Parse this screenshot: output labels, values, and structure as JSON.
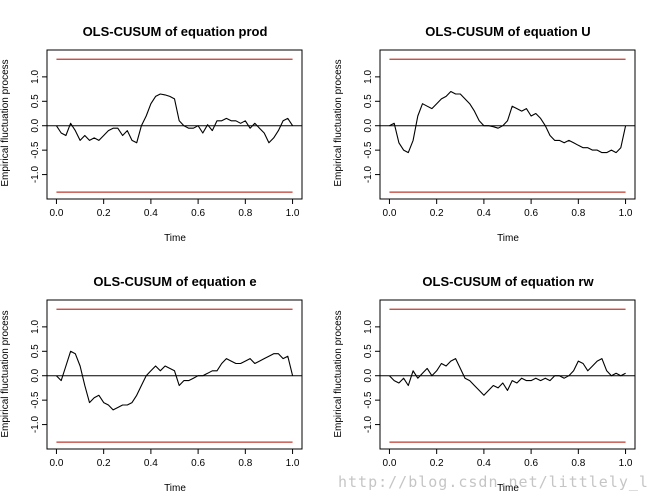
{
  "watermark": "http://blog.csdn.net/littlely_ll",
  "colors": {
    "series": "#000000",
    "boundary": "#c0392b",
    "zero_line": "#000000",
    "axis": "#000000"
  },
  "chart_data": [
    {
      "type": "line",
      "title": "OLS-CUSUM of equation prod",
      "xlabel": "Time",
      "ylabel": "Empirical fluctuation process",
      "xlim": [
        -0.04,
        1.04
      ],
      "ylim": [
        -1.5,
        1.55
      ],
      "x_ticks": [
        "0.0",
        "0.2",
        "0.4",
        "0.6",
        "0.8",
        "1.0"
      ],
      "y_ticks": [
        "-1.0",
        "-0.5",
        "0.0",
        "0.5",
        "1.0"
      ],
      "boundaries": [
        1.36,
        -1.36
      ],
      "zero_line": 0,
      "x": [
        0,
        0.02,
        0.04,
        0.06,
        0.08,
        0.1,
        0.12,
        0.14,
        0.16,
        0.18,
        0.2,
        0.22,
        0.24,
        0.26,
        0.28,
        0.3,
        0.32,
        0.34,
        0.36,
        0.38,
        0.4,
        0.42,
        0.44,
        0.46,
        0.48,
        0.5,
        0.52,
        0.54,
        0.56,
        0.58,
        0.6,
        0.62,
        0.64,
        0.66,
        0.68,
        0.7,
        0.72,
        0.74,
        0.76,
        0.78,
        0.8,
        0.82,
        0.84,
        0.86,
        0.88,
        0.9,
        0.92,
        0.94,
        0.96,
        0.98,
        1.0
      ],
      "y": [
        0,
        -0.15,
        -0.2,
        0.05,
        -0.1,
        -0.3,
        -0.2,
        -0.3,
        -0.25,
        -0.3,
        -0.2,
        -0.1,
        -0.05,
        -0.05,
        -0.2,
        -0.1,
        -0.3,
        -0.35,
        0.0,
        0.2,
        0.45,
        0.6,
        0.65,
        0.63,
        0.6,
        0.55,
        0.1,
        0.0,
        -0.05,
        -0.05,
        0.0,
        -0.15,
        0.02,
        -0.1,
        0.1,
        0.1,
        0.15,
        0.1,
        0.1,
        0.05,
        0.1,
        -0.05,
        0.05,
        -0.05,
        -0.15,
        -0.35,
        -0.25,
        -0.1,
        0.1,
        0.15,
        0.0
      ]
    },
    {
      "type": "line",
      "title": "OLS-CUSUM of equation U",
      "xlabel": "Time",
      "ylabel": "Empirical fluctuation process",
      "xlim": [
        -0.04,
        1.04
      ],
      "ylim": [
        -1.5,
        1.55
      ],
      "x_ticks": [
        "0.0",
        "0.2",
        "0.4",
        "0.6",
        "0.8",
        "1.0"
      ],
      "y_ticks": [
        "-1.0",
        "-0.5",
        "0.0",
        "0.5",
        "1.0"
      ],
      "boundaries": [
        1.36,
        -1.36
      ],
      "zero_line": 0,
      "x": [
        0,
        0.02,
        0.04,
        0.06,
        0.08,
        0.1,
        0.12,
        0.14,
        0.16,
        0.18,
        0.2,
        0.22,
        0.24,
        0.26,
        0.28,
        0.3,
        0.32,
        0.34,
        0.36,
        0.38,
        0.4,
        0.42,
        0.44,
        0.46,
        0.48,
        0.5,
        0.52,
        0.54,
        0.56,
        0.58,
        0.6,
        0.62,
        0.64,
        0.66,
        0.68,
        0.7,
        0.72,
        0.74,
        0.76,
        0.78,
        0.8,
        0.82,
        0.84,
        0.86,
        0.88,
        0.9,
        0.92,
        0.94,
        0.96,
        0.98,
        1.0
      ],
      "y": [
        0,
        0.05,
        -0.35,
        -0.5,
        -0.55,
        -0.3,
        0.2,
        0.45,
        0.4,
        0.35,
        0.45,
        0.55,
        0.6,
        0.7,
        0.65,
        0.65,
        0.55,
        0.45,
        0.3,
        0.1,
        0.0,
        0.0,
        -0.02,
        -0.05,
        0.0,
        0.1,
        0.4,
        0.35,
        0.3,
        0.35,
        0.2,
        0.25,
        0.15,
        0.0,
        -0.2,
        -0.3,
        -0.3,
        -0.35,
        -0.3,
        -0.35,
        -0.4,
        -0.45,
        -0.45,
        -0.5,
        -0.5,
        -0.55,
        -0.55,
        -0.5,
        -0.55,
        -0.45,
        0.0
      ]
    },
    {
      "type": "line",
      "title": "OLS-CUSUM of equation e",
      "xlabel": "Time",
      "ylabel": "Empirical fluctuation process",
      "xlim": [
        -0.04,
        1.04
      ],
      "ylim": [
        -1.5,
        1.55
      ],
      "x_ticks": [
        "0.0",
        "0.2",
        "0.4",
        "0.6",
        "0.8",
        "1.0"
      ],
      "y_ticks": [
        "-1.0",
        "-0.5",
        "0.0",
        "0.5",
        "1.0"
      ],
      "boundaries": [
        1.36,
        -1.36
      ],
      "zero_line": 0,
      "x": [
        0,
        0.02,
        0.04,
        0.06,
        0.08,
        0.1,
        0.12,
        0.14,
        0.16,
        0.18,
        0.2,
        0.22,
        0.24,
        0.26,
        0.28,
        0.3,
        0.32,
        0.34,
        0.36,
        0.38,
        0.4,
        0.42,
        0.44,
        0.46,
        0.48,
        0.5,
        0.52,
        0.54,
        0.56,
        0.58,
        0.6,
        0.62,
        0.64,
        0.66,
        0.68,
        0.7,
        0.72,
        0.74,
        0.76,
        0.78,
        0.8,
        0.82,
        0.84,
        0.86,
        0.88,
        0.9,
        0.92,
        0.94,
        0.96,
        0.98,
        1.0
      ],
      "y": [
        0,
        -0.1,
        0.2,
        0.5,
        0.45,
        0.2,
        -0.2,
        -0.55,
        -0.45,
        -0.4,
        -0.55,
        -0.6,
        -0.7,
        -0.65,
        -0.6,
        -0.6,
        -0.55,
        -0.4,
        -0.2,
        0.0,
        0.1,
        0.2,
        0.1,
        0.2,
        0.15,
        0.1,
        -0.2,
        -0.1,
        -0.1,
        -0.05,
        0.0,
        0.0,
        0.05,
        0.1,
        0.1,
        0.25,
        0.35,
        0.3,
        0.25,
        0.25,
        0.3,
        0.35,
        0.25,
        0.3,
        0.35,
        0.4,
        0.45,
        0.45,
        0.35,
        0.4,
        0.0
      ]
    },
    {
      "type": "line",
      "title": "OLS-CUSUM of equation rw",
      "xlabel": "Time",
      "ylabel": "Empirical fluctuation process",
      "xlim": [
        -0.04,
        1.04
      ],
      "ylim": [
        -1.5,
        1.55
      ],
      "x_ticks": [
        "0.0",
        "0.2",
        "0.4",
        "0.6",
        "0.8",
        "1.0"
      ],
      "y_ticks": [
        "-1.0",
        "-0.5",
        "0.0",
        "0.5",
        "1.0"
      ],
      "boundaries": [
        1.36,
        -1.36
      ],
      "zero_line": 0,
      "x": [
        0,
        0.02,
        0.04,
        0.06,
        0.08,
        0.1,
        0.12,
        0.14,
        0.16,
        0.18,
        0.2,
        0.22,
        0.24,
        0.26,
        0.28,
        0.3,
        0.32,
        0.34,
        0.36,
        0.38,
        0.4,
        0.42,
        0.44,
        0.46,
        0.48,
        0.5,
        0.52,
        0.54,
        0.56,
        0.58,
        0.6,
        0.62,
        0.64,
        0.66,
        0.68,
        0.7,
        0.72,
        0.74,
        0.76,
        0.78,
        0.8,
        0.82,
        0.84,
        0.86,
        0.88,
        0.9,
        0.92,
        0.94,
        0.96,
        0.98,
        1.0
      ],
      "y": [
        0,
        -0.1,
        -0.15,
        -0.05,
        -0.2,
        0.1,
        -0.05,
        0.05,
        0.15,
        0.0,
        0.1,
        0.25,
        0.2,
        0.3,
        0.35,
        0.15,
        -0.05,
        -0.1,
        -0.2,
        -0.3,
        -0.4,
        -0.3,
        -0.2,
        -0.25,
        -0.15,
        -0.3,
        -0.1,
        -0.15,
        -0.05,
        -0.1,
        -0.1,
        -0.05,
        -0.1,
        -0.05,
        -0.1,
        0.0,
        0.0,
        -0.05,
        0.0,
        0.1,
        0.3,
        0.25,
        0.1,
        0.2,
        0.3,
        0.35,
        0.1,
        0.0,
        0.05,
        0.0,
        0.05
      ]
    }
  ]
}
